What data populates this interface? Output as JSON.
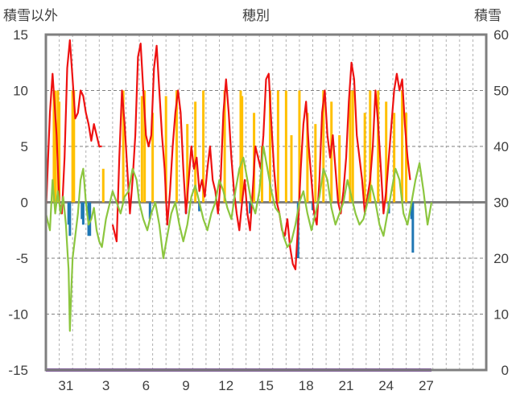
{
  "chart_data": {
    "type": "line",
    "title": "穂別",
    "y_left_label": "積雪以外",
    "y_right_label": "積雪",
    "y_left_range": [
      -15,
      15
    ],
    "y_left_ticks": [
      "15",
      "10",
      "5",
      "0",
      "-5",
      "-10",
      "-15"
    ],
    "y_right_range": [
      0,
      60
    ],
    "y_right_ticks": [
      "60",
      "50",
      "40",
      "30",
      "20",
      "10",
      "0"
    ],
    "x_tick_labels": [
      "31",
      "3",
      "6",
      "9",
      "12",
      "15",
      "18",
      "21",
      "24",
      "27"
    ],
    "grid": true,
    "x_days": 33,
    "colors": {
      "red_line": "#ee1111",
      "green_line": "#8cc63f",
      "orange_bars": "#ffc000",
      "blue_bars": "#1f77b4",
      "snow_depth": "#7030a0",
      "frame": "#7f7f7f"
    },
    "series": [
      {
        "color_key": "red_line",
        "kind": "line",
        "axis": "left",
        "points": [
          [
            0.0,
            -1.0
          ],
          [
            0.3,
            8.0
          ],
          [
            0.5,
            11.5
          ],
          [
            0.8,
            6.0
          ],
          [
            1.0,
            0.0
          ],
          [
            1.2,
            -1.0
          ],
          [
            1.4,
            4.0
          ],
          [
            1.6,
            12.0
          ],
          [
            1.8,
            14.5
          ],
          [
            2.0,
            11.0
          ],
          [
            2.2,
            7.5
          ],
          [
            2.4,
            8.0
          ],
          [
            2.6,
            10.0
          ],
          [
            2.8,
            9.5
          ],
          [
            3.0,
            8.0
          ],
          [
            3.2,
            7.0
          ],
          [
            3.4,
            5.5
          ],
          [
            3.6,
            7.0
          ],
          [
            3.8,
            6.0
          ],
          [
            4.0,
            5.0
          ],
          [
            4.2,
            5.0
          ]
        ]
      },
      {
        "color_key": "red_line",
        "kind": "line",
        "axis": "left",
        "points": [
          [
            5.0,
            -2.0
          ],
          [
            5.3,
            -3.5
          ],
          [
            5.5,
            4.0
          ],
          [
            5.7,
            10.0
          ],
          [
            5.9,
            7.0
          ],
          [
            6.1,
            3.0
          ],
          [
            6.3,
            -1.0
          ],
          [
            6.5,
            2.0
          ],
          [
            6.7,
            6.0
          ],
          [
            6.9,
            13.0
          ],
          [
            7.1,
            14.2
          ],
          [
            7.3,
            10.0
          ],
          [
            7.5,
            6.0
          ],
          [
            7.7,
            5.0
          ],
          [
            7.9,
            6.0
          ],
          [
            8.1,
            12.0
          ],
          [
            8.3,
            14.0
          ],
          [
            8.5,
            10.0
          ],
          [
            8.7,
            6.0
          ],
          [
            8.9,
            3.0
          ],
          [
            9.1,
            -2.0
          ],
          [
            9.3,
            1.0
          ],
          [
            9.5,
            5.0
          ],
          [
            9.7,
            8.0
          ],
          [
            9.9,
            10.0
          ],
          [
            10.1,
            8.0
          ],
          [
            10.3,
            3.0
          ],
          [
            10.5,
            -1.0
          ],
          [
            10.7,
            2.0
          ],
          [
            10.9,
            5.0
          ],
          [
            11.1,
            3.0
          ],
          [
            11.3,
            4.0
          ],
          [
            11.5,
            1.0
          ],
          [
            11.7,
            2.0
          ],
          [
            11.9,
            0.5
          ],
          [
            12.1,
            3.0
          ],
          [
            12.3,
            5.0
          ],
          [
            12.5,
            2.0
          ],
          [
            12.7,
            1.0
          ],
          [
            12.9,
            -1.0
          ],
          [
            13.1,
            2.0
          ],
          [
            13.3,
            8.0
          ],
          [
            13.5,
            11.0
          ],
          [
            13.7,
            8.0
          ],
          [
            13.9,
            4.0
          ],
          [
            14.1,
            1.0
          ],
          [
            14.3,
            -1.0
          ],
          [
            14.5,
            -2.5
          ],
          [
            14.7,
            0.0
          ],
          [
            14.9,
            2.0
          ],
          [
            15.1,
            -1.0
          ],
          [
            15.3,
            -2.5
          ],
          [
            15.5,
            1.0
          ],
          [
            15.7,
            5.0
          ],
          [
            15.9,
            4.0
          ],
          [
            16.1,
            3.0
          ],
          [
            16.3,
            6.0
          ],
          [
            16.5,
            11.0
          ],
          [
            16.7,
            11.5
          ],
          [
            16.9,
            7.0
          ],
          [
            17.1,
            3.0
          ],
          [
            17.3,
            0.0
          ],
          [
            17.5,
            -1.0
          ],
          [
            17.7,
            -2.5
          ],
          [
            17.9,
            -3.0
          ],
          [
            18.1,
            -1.5
          ],
          [
            18.3,
            -4.0
          ],
          [
            18.5,
            -5.5
          ],
          [
            18.7,
            -6.0
          ],
          [
            18.9,
            -2.0
          ],
          [
            19.1,
            3.0
          ],
          [
            19.3,
            7.0
          ],
          [
            19.5,
            9.0
          ],
          [
            19.7,
            5.0
          ],
          [
            19.9,
            2.0
          ],
          [
            20.1,
            -1.0
          ],
          [
            20.3,
            -2.0
          ],
          [
            20.5,
            2.0
          ],
          [
            20.7,
            8.0
          ],
          [
            20.9,
            10.0
          ],
          [
            21.1,
            6.0
          ],
          [
            21.3,
            4.0
          ],
          [
            21.5,
            6.0
          ],
          [
            21.7,
            3.0
          ],
          [
            21.9,
            0.0
          ],
          [
            22.1,
            -1.0
          ],
          [
            22.3,
            1.0
          ],
          [
            22.5,
            4.0
          ],
          [
            22.7,
            9.0
          ],
          [
            22.9,
            12.5
          ],
          [
            23.1,
            11.0
          ],
          [
            23.3,
            6.0
          ],
          [
            23.5,
            4.0
          ],
          [
            23.7,
            2.0
          ],
          [
            23.9,
            -1.0
          ],
          [
            24.1,
            0.5
          ],
          [
            24.3,
            2.0
          ],
          [
            24.5,
            5.0
          ],
          [
            24.7,
            10.0
          ],
          [
            24.9,
            7.0
          ],
          [
            25.1,
            3.0
          ],
          [
            25.3,
            -1.0
          ],
          [
            25.5,
            1.0
          ],
          [
            25.7,
            4.0
          ],
          [
            25.9,
            7.0
          ],
          [
            26.1,
            10.0
          ],
          [
            26.3,
            11.5
          ],
          [
            26.5,
            10.0
          ],
          [
            26.7,
            11.0
          ],
          [
            26.9,
            7.0
          ],
          [
            27.1,
            4.0
          ],
          [
            27.3,
            2.0
          ]
        ]
      },
      {
        "color_key": "green_line",
        "kind": "line",
        "axis": "left",
        "points": [
          [
            0.0,
            -1.0
          ],
          [
            0.3,
            -2.5
          ],
          [
            0.5,
            2.0
          ],
          [
            0.7,
            -1.0
          ],
          [
            0.9,
            1.0
          ],
          [
            1.1,
            -1.0
          ],
          [
            1.3,
            0.5
          ],
          [
            1.5,
            -2.0
          ],
          [
            1.6,
            -4.0
          ],
          [
            1.7,
            -6.0
          ],
          [
            1.8,
            -11.5
          ],
          [
            1.9,
            -8.0
          ],
          [
            2.0,
            -5.0
          ],
          [
            2.2,
            -3.0
          ],
          [
            2.4,
            -1.0
          ],
          [
            2.6,
            2.0
          ],
          [
            2.8,
            3.0
          ],
          [
            3.0,
            0.0
          ],
          [
            3.2,
            -2.0
          ],
          [
            3.4,
            -1.5
          ],
          [
            3.6,
            -0.5
          ],
          [
            3.8,
            -2.5
          ],
          [
            4.0,
            -3.5
          ],
          [
            4.2,
            -4.0
          ],
          [
            4.5,
            -1.5
          ],
          [
            4.8,
            0.0
          ],
          [
            5.0,
            1.0
          ],
          [
            5.3,
            0.0
          ],
          [
            5.6,
            -1.0
          ],
          [
            5.9,
            0.5
          ],
          [
            6.2,
            1.0
          ],
          [
            6.5,
            3.0
          ],
          [
            6.8,
            2.0
          ],
          [
            7.0,
            0.0
          ],
          [
            7.3,
            -1.5
          ],
          [
            7.6,
            -2.5
          ],
          [
            7.9,
            -1.0
          ],
          [
            8.2,
            0.0
          ],
          [
            8.5,
            -2.0
          ],
          [
            8.8,
            -5.0
          ],
          [
            9.1,
            -3.0
          ],
          [
            9.4,
            -1.0
          ],
          [
            9.7,
            0.0
          ],
          [
            10.0,
            -2.0
          ],
          [
            10.3,
            -3.5
          ],
          [
            10.6,
            -2.0
          ],
          [
            10.9,
            0.5
          ],
          [
            11.2,
            1.5
          ],
          [
            11.5,
            0.0
          ],
          [
            11.8,
            -1.5
          ],
          [
            12.1,
            -2.5
          ],
          [
            12.4,
            -1.0
          ],
          [
            12.7,
            0.0
          ],
          [
            13.0,
            2.0
          ],
          [
            13.3,
            1.0
          ],
          [
            13.6,
            -0.5
          ],
          [
            13.9,
            -1.5
          ],
          [
            14.2,
            1.0
          ],
          [
            14.5,
            3.0
          ],
          [
            14.8,
            4.0
          ],
          [
            15.1,
            2.0
          ],
          [
            15.4,
            0.0
          ],
          [
            15.7,
            -1.0
          ],
          [
            16.0,
            1.0
          ],
          [
            16.3,
            5.0
          ],
          [
            16.6,
            3.0
          ],
          [
            16.9,
            1.0
          ],
          [
            17.2,
            -0.5
          ],
          [
            17.5,
            -1.0
          ],
          [
            17.8,
            -3.0
          ],
          [
            18.1,
            -4.0
          ],
          [
            18.4,
            -3.5
          ],
          [
            18.7,
            -2.0
          ],
          [
            19.0,
            0.0
          ],
          [
            19.3,
            1.0
          ],
          [
            19.6,
            -1.0
          ],
          [
            19.9,
            -2.5
          ],
          [
            20.2,
            -1.0
          ],
          [
            20.5,
            0.5
          ],
          [
            20.8,
            3.0
          ],
          [
            21.1,
            2.0
          ],
          [
            21.4,
            -0.5
          ],
          [
            21.7,
            -2.0
          ],
          [
            22.0,
            -1.0
          ],
          [
            22.3,
            0.0
          ],
          [
            22.6,
            2.0
          ],
          [
            22.9,
            0.5
          ],
          [
            23.2,
            -1.0
          ],
          [
            23.5,
            -2.0
          ],
          [
            23.8,
            -1.5
          ],
          [
            24.1,
            0.0
          ],
          [
            24.4,
            1.5
          ],
          [
            24.7,
            0.0
          ],
          [
            25.0,
            -2.0
          ],
          [
            25.3,
            -3.0
          ],
          [
            25.6,
            -1.0
          ],
          [
            25.9,
            1.0
          ],
          [
            26.2,
            3.0
          ],
          [
            26.5,
            2.0
          ],
          [
            26.8,
            -1.0
          ],
          [
            27.1,
            -2.0
          ],
          [
            27.4,
            0.0
          ],
          [
            27.7,
            2.0
          ],
          [
            28.0,
            3.5
          ],
          [
            28.3,
            1.0
          ],
          [
            28.6,
            -2.0
          ],
          [
            28.9,
            0.0
          ]
        ]
      },
      {
        "color_key": "orange_bars",
        "kind": "bar",
        "axis": "left",
        "points": [
          [
            0.6,
            10.0
          ],
          [
            0.7,
            10.0
          ],
          [
            0.9,
            10.0
          ],
          [
            1.0,
            9.0
          ],
          [
            2.0,
            10.0
          ],
          [
            2.1,
            10.0
          ],
          [
            4.3,
            3.0
          ],
          [
            5.8,
            10.0
          ],
          [
            7.2,
            9.5
          ],
          [
            7.4,
            10.0
          ],
          [
            8.0,
            8.0
          ],
          [
            9.0,
            9.5
          ],
          [
            9.8,
            10.0
          ],
          [
            10.6,
            7.0
          ],
          [
            11.2,
            9.0
          ],
          [
            11.8,
            10.0
          ],
          [
            13.4,
            10.0
          ],
          [
            14.6,
            10.0
          ],
          [
            14.7,
            9.5
          ],
          [
            15.6,
            8.0
          ],
          [
            16.2,
            5.0
          ],
          [
            16.8,
            10.0
          ],
          [
            17.4,
            10.0
          ],
          [
            18.0,
            10.0
          ],
          [
            18.4,
            6.0
          ],
          [
            19.0,
            10.0
          ],
          [
            19.6,
            8.0
          ],
          [
            20.2,
            7.0
          ],
          [
            20.8,
            10.0
          ],
          [
            21.4,
            9.0
          ],
          [
            22.0,
            6.0
          ],
          [
            22.8,
            10.0
          ],
          [
            23.0,
            10.0
          ],
          [
            23.9,
            8.0
          ],
          [
            24.3,
            10.0
          ],
          [
            24.9,
            10.0
          ],
          [
            25.5,
            9.0
          ],
          [
            26.1,
            8.0
          ],
          [
            26.7,
            10.0
          ],
          [
            27.0,
            8.0
          ]
        ]
      },
      {
        "color_key": "blue_bars",
        "kind": "bar",
        "axis": "left",
        "points": [
          [
            1.7,
            -2.0
          ],
          [
            1.8,
            -3.0
          ],
          [
            2.7,
            -1.5
          ],
          [
            2.8,
            -2.0
          ],
          [
            3.2,
            -3.0
          ],
          [
            3.3,
            -3.0
          ],
          [
            7.8,
            -1.5
          ],
          [
            10.5,
            -1.0
          ],
          [
            11.5,
            -0.8
          ],
          [
            15.3,
            -1.0
          ],
          [
            18.9,
            -5.0
          ],
          [
            20.0,
            -0.7
          ],
          [
            25.7,
            -1.0
          ],
          [
            27.4,
            -1.5
          ],
          [
            27.5,
            -4.5
          ]
        ]
      },
      {
        "color_key": "snow_depth",
        "kind": "line",
        "axis": "right",
        "points": [
          [
            0.0,
            0.0
          ],
          [
            28.9,
            0.0
          ]
        ]
      }
    ]
  }
}
